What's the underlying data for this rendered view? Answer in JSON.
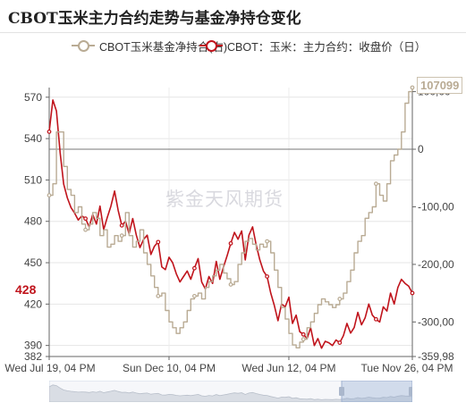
{
  "title": "CBOT玉米主力合约走势与基金净持仓变化",
  "legend": [
    {
      "label": "CBOT玉米基金净持合(右)",
      "color": "#b9ab94"
    },
    {
      "label": "CBOT：玉米：主力合约：收盘价（日）",
      "color": "#c0141c"
    }
  ],
  "watermark": "紫金天风期货",
  "current_price_label": "428",
  "right_end_label": "107099",
  "chart_data": {
    "type": "line",
    "x_ticks": [
      "Wed Jul 19, 04 PM",
      "Sun Dec 10, 04 PM",
      "Wed Jun 12, 04 PM",
      "Tue Nov 26, 04 PM"
    ],
    "y_left": {
      "min": 382,
      "max": 577,
      "ticks": [
        "382",
        "390",
        "420",
        "450",
        "480",
        "510",
        "540",
        "570"
      ]
    },
    "y_right": {
      "min": -359987,
      "max": 107099,
      "ticks": [
        "100,00",
        "0",
        "-100,00",
        "-200,00",
        "-300,00",
        "-359,98"
      ]
    },
    "series": [
      {
        "name": "CBOT：玉米：主力合约：收盘价（日）",
        "axis": "left",
        "color": "#c0141c",
        "x": [
          0,
          1,
          2,
          3,
          4,
          5,
          6,
          7,
          8,
          9,
          10,
          11,
          12,
          13,
          14,
          15,
          16,
          17,
          18,
          19,
          20,
          21,
          22,
          23,
          24,
          25,
          26,
          27,
          28,
          29,
          30,
          31,
          32,
          33,
          34,
          35,
          36,
          37,
          38,
          39,
          40,
          41,
          42,
          43,
          44,
          45,
          46,
          47,
          48,
          49,
          50,
          51,
          52,
          53,
          54,
          55,
          56,
          57,
          58,
          59,
          60,
          61,
          62,
          63,
          64,
          65,
          66,
          67,
          68,
          69,
          70,
          71,
          72,
          73,
          74,
          75,
          76,
          77,
          78,
          79,
          80,
          81,
          82,
          83,
          84,
          85,
          86,
          87,
          88,
          89,
          90,
          91,
          92,
          93,
          94,
          95,
          96,
          97,
          98,
          99,
          100
        ],
        "values": [
          545,
          568,
          560,
          530,
          507,
          497,
          490,
          486,
          481,
          484,
          482,
          476,
          485,
          478,
          491,
          474,
          483,
          491,
          502,
          488,
          477,
          480,
          471,
          482,
          470,
          461,
          467,
          470,
          456,
          462,
          465,
          447,
          445,
          454,
          450,
          442,
          436,
          440,
          444,
          438,
          446,
          453,
          436,
          431,
          440,
          435,
          451,
          438,
          447,
          455,
          464,
          472,
          467,
          473,
          452,
          470,
          476,
          463,
          452,
          444,
          440,
          428,
          419,
          408,
          420,
          418,
          425,
          406,
          412,
          400,
          398,
          395,
          403,
          390,
          395,
          388,
          393,
          392,
          390,
          394,
          392,
          397,
          406,
          399,
          403,
          414,
          405,
          410,
          420,
          412,
          409,
          407,
          418,
          415,
          428,
          420,
          432,
          438,
          435,
          433,
          428
        ]
      },
      {
        "name": "CBOT玉米基金净持合(右)",
        "axis": "right",
        "color": "#b9ab94",
        "x": [
          0,
          1,
          2,
          3,
          4,
          5,
          6,
          7,
          8,
          9,
          10,
          11,
          12,
          13,
          14,
          15,
          16,
          17,
          18,
          19,
          20,
          21,
          22,
          23,
          24,
          25,
          26,
          27,
          28,
          29,
          30,
          31,
          32,
          33,
          34,
          35,
          36,
          37,
          38,
          39,
          40,
          41,
          42,
          43,
          44,
          45,
          46,
          47,
          48,
          49,
          50,
          51,
          52,
          53,
          54,
          55,
          56,
          57,
          58,
          59,
          60,
          61,
          62,
          63,
          64,
          65,
          66,
          67,
          68,
          69,
          70,
          71,
          72,
          73,
          74,
          75,
          76,
          77,
          78,
          79,
          80,
          81,
          82,
          83,
          84,
          85,
          86,
          87,
          88,
          89,
          90,
          91,
          92,
          93,
          94,
          95,
          96,
          97,
          98,
          99,
          100
        ],
        "values": [
          -80000,
          -60000,
          30000,
          30000,
          -30000,
          -70000,
          -80000,
          -110000,
          -100000,
          -130000,
          -140000,
          -130000,
          -110000,
          -120000,
          -150000,
          -140000,
          -170000,
          -165000,
          -150000,
          -160000,
          -150000,
          -110000,
          -150000,
          -170000,
          -160000,
          -140000,
          -180000,
          -200000,
          -220000,
          -240000,
          -255000,
          -250000,
          -280000,
          -300000,
          -310000,
          -320000,
          -310000,
          -300000,
          -280000,
          -260000,
          -255000,
          -250000,
          -260000,
          -240000,
          -230000,
          -220000,
          -210000,
          -200000,
          -215000,
          -225000,
          -235000,
          -230000,
          -200000,
          -180000,
          -160000,
          -155000,
          -165000,
          -175000,
          -165000,
          -170000,
          -160000,
          -180000,
          -210000,
          -240000,
          -275000,
          -295000,
          -320000,
          -340000,
          -345000,
          -335000,
          -330000,
          -310000,
          -300000,
          -285000,
          -270000,
          -260000,
          -265000,
          -270000,
          -275000,
          -270000,
          -260000,
          -250000,
          -230000,
          -210000,
          -180000,
          -160000,
          -150000,
          -120000,
          -110000,
          -100000,
          -60000,
          -80000,
          -90000,
          -60000,
          -20000,
          -10000,
          0,
          30000,
          80000,
          100000,
          107099
        ]
      }
    ]
  }
}
